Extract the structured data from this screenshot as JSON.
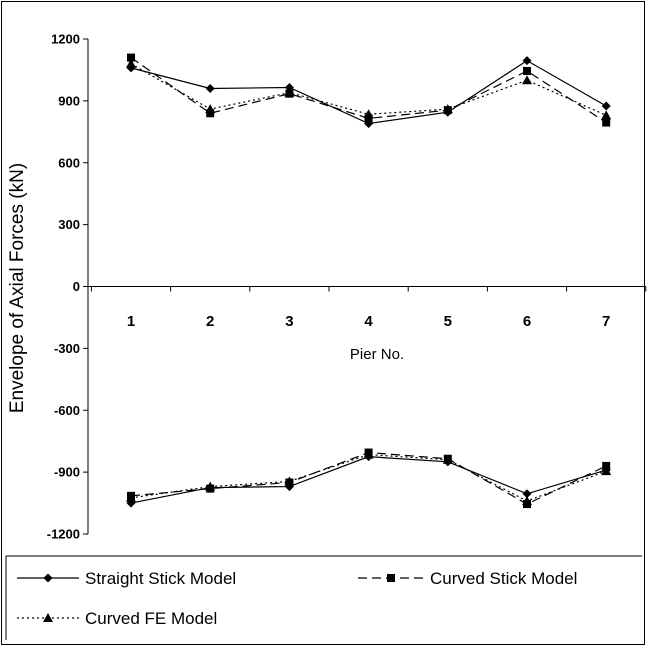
{
  "chart_data": {
    "type": "line",
    "title": "",
    "xlabel": "Pier No.",
    "ylabel": "Envelope of Axial Forces (kN)",
    "categories": [
      "1",
      "2",
      "3",
      "4",
      "5",
      "6",
      "7"
    ],
    "yticks": [
      "1200",
      "900",
      "600",
      "300",
      "0",
      "-300",
      "-600",
      "-900",
      "-1200"
    ],
    "ylim": [
      -1200,
      1200
    ],
    "grid": false,
    "legend_position": "bottom",
    "series": [
      {
        "name": "Straight Stick Model",
        "line": "solid",
        "marker": "diamond",
        "max": [
          1060,
          960,
          965,
          790,
          845,
          1095,
          875
        ],
        "min": [
          -1050,
          -975,
          -970,
          -825,
          -850,
          -1005,
          -890
        ]
      },
      {
        "name": "Curved Stick Model",
        "line": "dashed",
        "marker": "square",
        "max": [
          1110,
          840,
          935,
          815,
          855,
          1045,
          795
        ],
        "min": [
          -1015,
          -980,
          -950,
          -805,
          -835,
          -1055,
          -870
        ]
      },
      {
        "name": "Curved FE Model",
        "line": "dotted",
        "marker": "triangle",
        "max": [
          1080,
          860,
          940,
          835,
          860,
          1000,
          830
        ],
        "min": [
          -1025,
          -970,
          -945,
          -815,
          -840,
          -1040,
          -895
        ]
      }
    ]
  }
}
